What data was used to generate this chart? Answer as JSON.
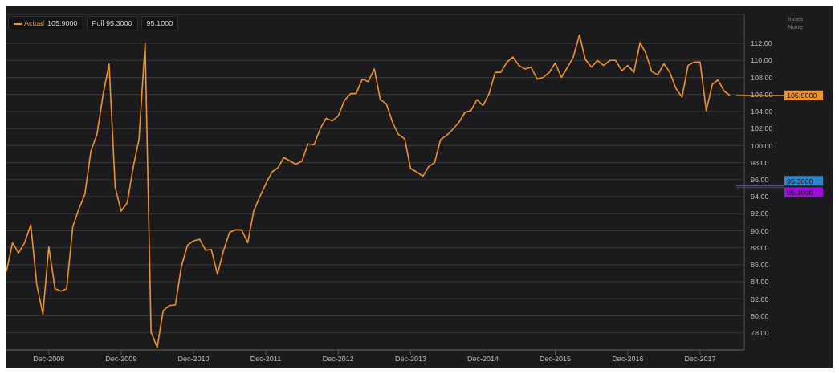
{
  "chart_data": {
    "type": "line",
    "ylabel": "Index None",
    "x": [
      "2008-05",
      "2008-06",
      "2008-07",
      "2008-08",
      "2008-09",
      "2008-10",
      "2008-11",
      "2008-12",
      "2009-01",
      "2009-02",
      "2009-03",
      "2009-04",
      "2009-05",
      "2009-06",
      "2009-07",
      "2009-08",
      "2009-09",
      "2009-10",
      "2009-11",
      "2009-12",
      "2010-01",
      "2010-02",
      "2010-03",
      "2010-04",
      "2010-05",
      "2010-06",
      "2010-07",
      "2010-08",
      "2010-09",
      "2010-10",
      "2010-11",
      "2010-12",
      "2011-01",
      "2011-02",
      "2011-03",
      "2011-04",
      "2011-05",
      "2011-06",
      "2011-07",
      "2011-08",
      "2011-09",
      "2011-10",
      "2011-11",
      "2011-12",
      "2012-01",
      "2012-02",
      "2012-03",
      "2012-04",
      "2012-05",
      "2012-06",
      "2012-07",
      "2012-08",
      "2012-09",
      "2012-10",
      "2012-11",
      "2012-12",
      "2013-01",
      "2013-02",
      "2013-03",
      "2013-04",
      "2013-05",
      "2013-06",
      "2013-07",
      "2013-08",
      "2013-09",
      "2013-10",
      "2013-11",
      "2013-12",
      "2014-01",
      "2014-02",
      "2014-03",
      "2014-04",
      "2014-05",
      "2014-06",
      "2014-07",
      "2014-08",
      "2014-09",
      "2014-10",
      "2014-11",
      "2014-12",
      "2015-01",
      "2015-02",
      "2015-03",
      "2015-04",
      "2015-05",
      "2015-06",
      "2015-07",
      "2015-08",
      "2015-09",
      "2015-10",
      "2015-11",
      "2015-12",
      "2016-01",
      "2016-02",
      "2016-03",
      "2016-04",
      "2016-05",
      "2016-06",
      "2016-07",
      "2016-08",
      "2016-09",
      "2016-10",
      "2016-11",
      "2016-12",
      "2017-01",
      "2017-02",
      "2017-03",
      "2017-04",
      "2017-05",
      "2017-06",
      "2017-07",
      "2017-08",
      "2017-09",
      "2017-10",
      "2017-11",
      "2017-12",
      "2018-01",
      "2018-02",
      "2018-03",
      "2018-04",
      "2018-05"
    ],
    "series": [
      {
        "name": "Actual",
        "color": "#f0922b",
        "values": [
          85.2,
          88.6,
          87.4,
          88.6,
          90.7,
          83.7,
          80.2,
          88.1,
          83.2,
          82.9,
          83.2,
          90.5,
          92.5,
          94.3,
          99.3,
          101.3,
          106.0,
          109.6,
          95.1,
          92.3,
          93.3,
          97.6,
          100.7,
          112.0,
          78.1,
          76.3,
          80.6,
          81.2,
          81.3,
          85.8,
          88.3,
          88.8,
          89.0,
          87.7,
          87.8,
          84.9,
          87.6,
          89.8,
          90.1,
          90.1,
          88.6,
          92.3,
          94.0,
          95.5,
          96.9,
          97.4,
          98.6,
          98.2,
          97.8,
          98.2,
          100.2,
          100.1,
          102.0,
          103.2,
          102.9,
          103.5,
          105.3,
          106.1,
          106.1,
          107.8,
          107.5,
          109.0,
          105.4,
          104.9,
          102.7,
          101.3,
          100.8,
          97.3,
          96.9,
          96.4,
          97.5,
          98.0,
          100.7,
          101.2,
          101.9,
          102.7,
          103.9,
          104.1,
          105.4,
          104.7,
          106.1,
          108.6,
          108.6,
          109.8,
          110.4,
          109.4,
          109.0,
          109.2,
          107.8,
          108.0,
          108.6,
          109.7,
          108.0,
          109.2,
          110.4,
          113.0,
          110.1,
          109.2,
          110.0,
          109.4,
          110.0,
          110.0,
          108.8,
          109.4,
          108.6,
          112.1,
          110.9,
          108.7,
          108.3,
          109.6,
          108.6,
          106.7,
          105.7,
          109.4,
          109.8,
          109.8,
          104.1,
          107.2,
          107.7,
          106.4,
          105.9
        ]
      }
    ],
    "xlim": [
      "2008-05-01",
      "2018-07-12"
    ],
    "xticks": [
      {
        "value": "2008-12",
        "label": "Dec-2008"
      },
      {
        "value": "2009-12",
        "label": "Dec-2009"
      },
      {
        "value": "2010-12",
        "label": "Dec-2010"
      },
      {
        "value": "2011-12",
        "label": "Dec-2011"
      },
      {
        "value": "2012-12",
        "label": "Dec-2012"
      },
      {
        "value": "2013-12",
        "label": "Dec-2013"
      },
      {
        "value": "2014-12",
        "label": "Dec-2014"
      },
      {
        "value": "2015-12",
        "label": "Dec-2015"
      },
      {
        "value": "2016-12",
        "label": "Dec-2016"
      },
      {
        "value": "2017-12",
        "label": "Dec-2017"
      }
    ],
    "ylim": [
      76,
      115.4
    ],
    "yticks": [
      {
        "value": 78,
        "label": "78.00"
      },
      {
        "value": 80,
        "label": "80.00"
      },
      {
        "value": 82,
        "label": "82.00"
      },
      {
        "value": 84,
        "label": "84.00"
      },
      {
        "value": 86,
        "label": "86.00"
      },
      {
        "value": 88,
        "label": "88.00"
      },
      {
        "value": 90,
        "label": "90.00"
      },
      {
        "value": 92,
        "label": "92.00"
      },
      {
        "value": 94,
        "label": "94.00"
      },
      {
        "value": 96,
        "label": "96.00"
      },
      {
        "value": 98,
        "label": "98.00"
      },
      {
        "value": 100,
        "label": "100.00"
      },
      {
        "value": 102,
        "label": "102.00"
      },
      {
        "value": 104,
        "label": "104.00"
      },
      {
        "value": 106,
        "label": "106.00"
      },
      {
        "value": 108,
        "label": "108.00"
      },
      {
        "value": 110,
        "label": "110.00"
      },
      {
        "value": 112,
        "label": "112.00"
      }
    ],
    "annotations": [
      "105.9000",
      "Poll 95.3000",
      "95.1000"
    ],
    "ref_lines": [
      {
        "axis": "y",
        "value": 105.9,
        "label": "105.9000",
        "color": "#f0922b"
      },
      {
        "axis": "y",
        "value": 95.3,
        "label": "95.3000",
        "color": "#2f86c8"
      },
      {
        "axis": "y",
        "value": 95.1,
        "label": "95.1000",
        "color": "#9a10d8"
      }
    ],
    "legend": "top left",
    "grid": "y",
    "line_style": "solid",
    "marker": "none"
  }
}
